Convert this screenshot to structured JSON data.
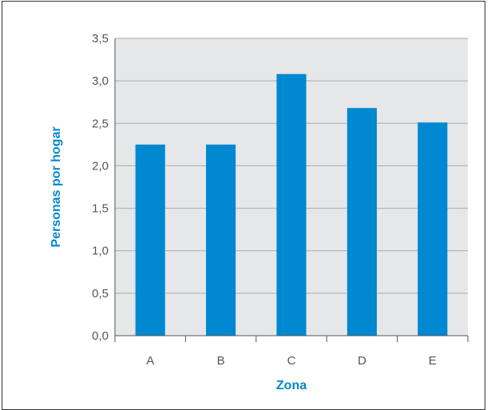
{
  "chart_data": {
    "type": "bar",
    "categories": [
      "A",
      "B",
      "C",
      "D",
      "E"
    ],
    "values": [
      2.25,
      2.25,
      3.08,
      2.68,
      2.51
    ],
    "title": "",
    "xlabel": "Zona",
    "ylabel": "Personas por hogar",
    "ylim": [
      0,
      3.5
    ],
    "yticks": [
      "0,0",
      "0,5",
      "1,0",
      "1,5",
      "2,0",
      "2,5",
      "3,0",
      "3,5"
    ],
    "grid": true,
    "bar_color": "#0088d1",
    "plot_background": "#e6e7e8",
    "gridline_color": "#aaaaaa",
    "axis_title_color": "#0088d1"
  }
}
